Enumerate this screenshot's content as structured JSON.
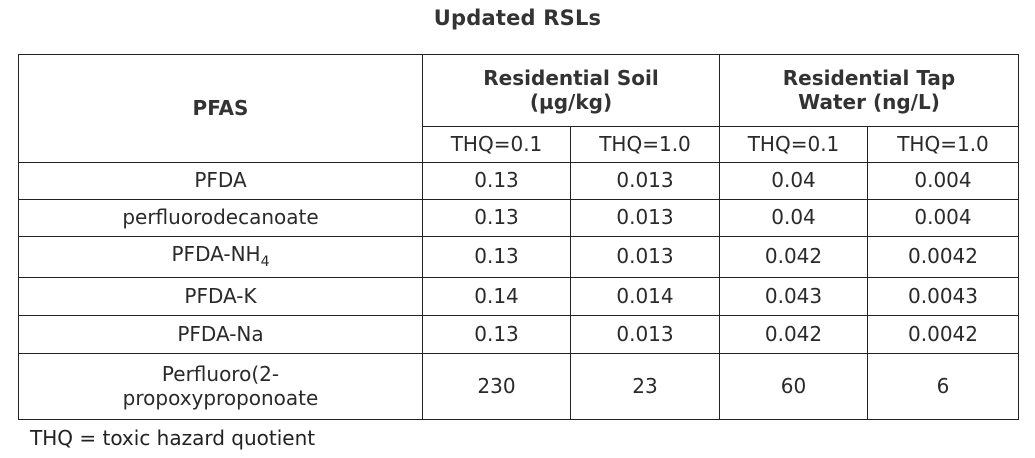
{
  "title": "Updated RSLs",
  "table": {
    "header": {
      "pfas": "PFAS",
      "soil_line1": "Residential Soil",
      "soil_line2": "(µg/kg)",
      "water_line1": "Residential Tap",
      "water_line2": "Water (ng/L)",
      "sub_headers": [
        "THQ=0.1",
        "THQ=1.0",
        "THQ=0.1",
        "THQ=1.0"
      ]
    },
    "rows": [
      {
        "name": "PFDA",
        "sub": "",
        "values": [
          "0.13",
          "0.013",
          "0.04",
          "0.004"
        ]
      },
      {
        "name": "perfluorodecanoate",
        "sub": "",
        "values": [
          "0.13",
          "0.013",
          "0.04",
          "0.004"
        ]
      },
      {
        "name": "PFDA-NH",
        "sub": "4",
        "values": [
          "0.13",
          "0.013",
          "0.042",
          "0.0042"
        ]
      },
      {
        "name": "PFDA-K",
        "sub": "",
        "values": [
          "0.14",
          "0.014",
          "0.043",
          "0.0043"
        ]
      },
      {
        "name": "PFDA-Na",
        "sub": "",
        "values": [
          "0.13",
          "0.013",
          "0.042",
          "0.0042"
        ]
      },
      {
        "name_line1": "Perfluoro(2-",
        "name_line2": "propoxyproponoate",
        "values": [
          "230",
          "23",
          "60",
          "6"
        ]
      }
    ]
  },
  "footnote": "THQ = toxic hazard quotient"
}
